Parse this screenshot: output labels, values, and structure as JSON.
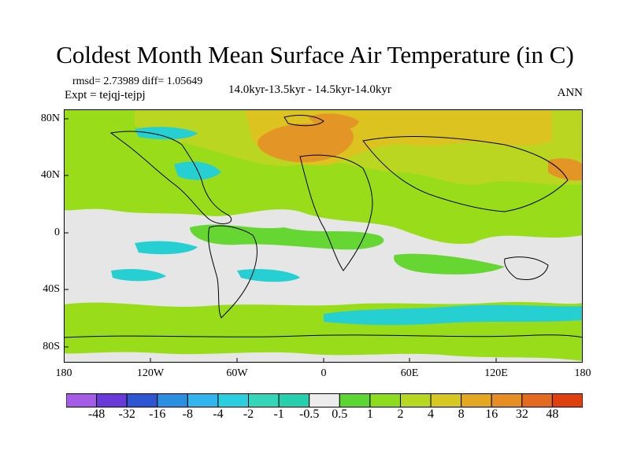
{
  "title": "Coldest Month Mean Surface Air Temperature (in C)",
  "stats": "rmsd= 2.73989 diff= 1.05649",
  "expt": "Expt = tejqj-tejpj",
  "period": "14.0kyr-13.5kyr - 14.5kyr-14.0kyr",
  "season": "ANN",
  "map": {
    "lat_labels": [
      "80N",
      "40N",
      "0",
      "40S",
      "80S"
    ],
    "lon_labels": [
      "180",
      "120W",
      "60W",
      "0",
      "60E",
      "120E",
      "180"
    ],
    "colors": {
      "land_outline": "#000000",
      "neutral": "#e6e6e6",
      "pos_green": "#66d633",
      "pos_lightgreen": "#99dd1a",
      "pos_yellowgreen": "#bbd620",
      "pos_yellow": "#ddc320",
      "pos_orange": "#e39526",
      "neg_cyan": "#26cfd1"
    }
  },
  "colorbar": {
    "labels": [
      "-48",
      "-32",
      "-16",
      "-8",
      "-4",
      "-2",
      "-1",
      "-0.5",
      "0.5",
      "1",
      "2",
      "4",
      "8",
      "16",
      "32",
      "48"
    ],
    "colors": [
      "#a45ce6",
      "#6a39d9",
      "#2d56d2",
      "#2a8fe0",
      "#31b5ee",
      "#2ccfe0",
      "#33d6b8",
      "#26cfad",
      "#ececec",
      "#5cd633",
      "#8edc20",
      "#b7d723",
      "#d6c722",
      "#e3a722",
      "#e68e24",
      "#e36a1e",
      "#e04010"
    ]
  }
}
